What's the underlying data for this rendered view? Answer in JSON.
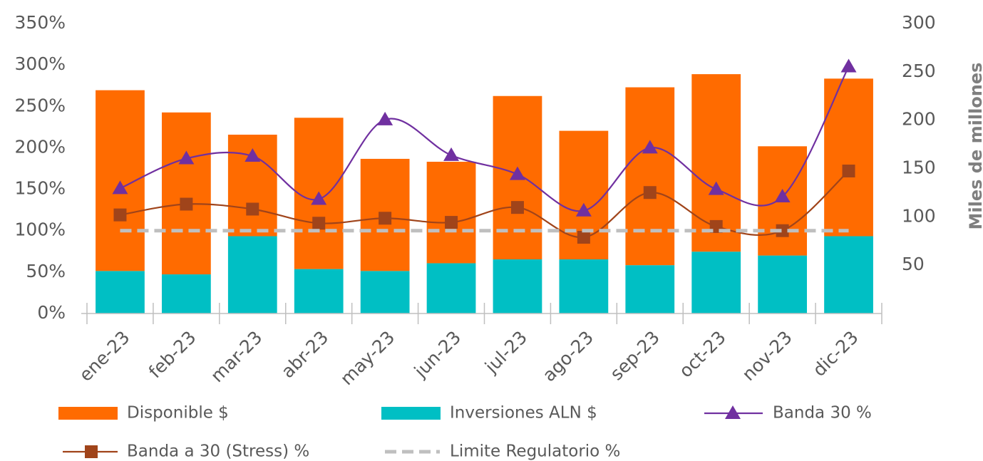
{
  "chart_data": {
    "type": "bar",
    "categories": [
      "ene-23",
      "feb-23",
      "mar-23",
      "abr-23",
      "may-23",
      "jun-23",
      "jul-23",
      "ago-23",
      "sep-23",
      "oct-23",
      "nov-23",
      "dic-23"
    ],
    "series": [
      {
        "name": "Disponible $",
        "type": "bar",
        "axis": "y2",
        "color": "#ff6b00",
        "values": [
          187,
          167.5,
          105,
          156.5,
          116,
          105,
          169,
          133,
          184,
          183.6,
          113,
          163
        ]
      },
      {
        "name": "Inversiones ALN $",
        "type": "bar",
        "axis": "y2",
        "color": "#00bfc4",
        "values": [
          44,
          40.5,
          80,
          46,
          44,
          52,
          56,
          56,
          50,
          64,
          60,
          80
        ]
      },
      {
        "name": "Banda 30 %",
        "type": "line",
        "marker": "triangle",
        "color": "#7030a0",
        "values": [
          151,
          187,
          190,
          138,
          234,
          191,
          168,
          124,
          200,
          150,
          141,
          298
        ]
      },
      {
        "name": "Banda a 30 (Stress) %",
        "type": "line",
        "marker": "square",
        "color": "#a0441a",
        "values": [
          119,
          132,
          126,
          109,
          115,
          110,
          128,
          92,
          146,
          105,
          100,
          172
        ]
      },
      {
        "name": "Limite Regulatorio %",
        "type": "line",
        "dashed": true,
        "color": "#bfbfbf",
        "values": [
          100,
          100,
          100,
          100,
          100,
          100,
          100,
          100,
          100,
          100,
          100,
          100
        ]
      }
    ],
    "ylim": [
      0,
      350
    ],
    "yticks": [
      {
        "value": 0,
        "label": "0%"
      },
      {
        "value": 50,
        "label": "50%"
      },
      {
        "value": 100,
        "label": "100%"
      },
      {
        "value": 150,
        "label": "150%"
      },
      {
        "value": 200,
        "label": "200%"
      },
      {
        "value": 250,
        "label": "250%"
      },
      {
        "value": 300,
        "label": "300%"
      },
      {
        "value": 350,
        "label": "350%"
      }
    ],
    "y2lim": [
      0,
      300
    ],
    "y2ticks": [
      50,
      100,
      150,
      200,
      250,
      300
    ],
    "y2label": "Miles de millones"
  }
}
